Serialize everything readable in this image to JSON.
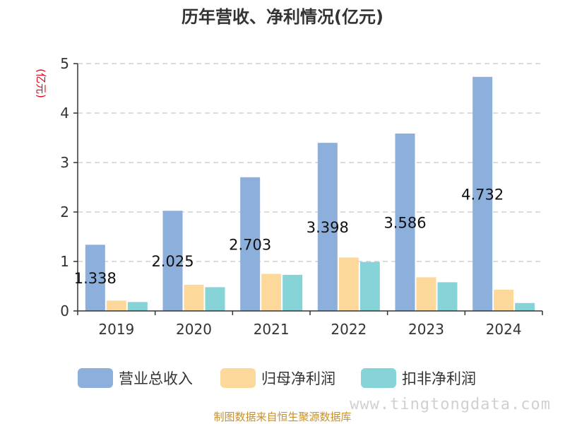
{
  "chart_data": {
    "type": "bar",
    "title": "历年营收、净利情况(亿元)",
    "unit_label": "(亿元)",
    "categories": [
      "2019",
      "2020",
      "2021",
      "2022",
      "2023",
      "2024"
    ],
    "series": [
      {
        "name": "营业总收入",
        "color": "#8dafdb",
        "values": [
          1.338,
          2.025,
          2.703,
          3.398,
          3.586,
          4.732
        ]
      },
      {
        "name": "归母净利润",
        "color": "#fdd89b",
        "values": [
          0.21,
          0.53,
          0.75,
          1.08,
          0.68,
          0.43
        ]
      },
      {
        "name": "扣非净利润",
        "color": "#86d3d8",
        "values": [
          0.18,
          0.48,
          0.73,
          0.99,
          0.58,
          0.16
        ]
      }
    ],
    "data_labels": [
      "1.338",
      "2.025",
      "2.703",
      "3.398",
      "3.586",
      "4.732"
    ],
    "ylim": [
      0,
      5
    ],
    "yticks": [
      "0",
      "1",
      "2",
      "3",
      "4",
      "5"
    ],
    "grid": true,
    "legend_position": "bottom"
  },
  "footer": {
    "source": "制图数据来自恒生聚源数据库",
    "watermark": "www.tingtongdata.com"
  }
}
